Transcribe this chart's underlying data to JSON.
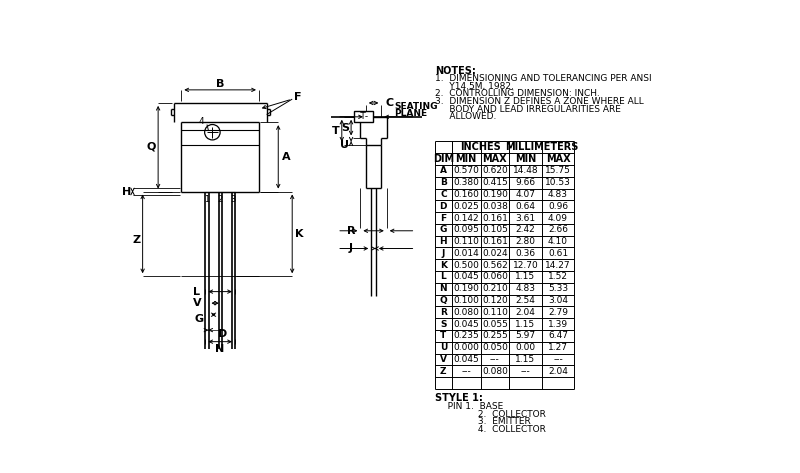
{
  "bg_color": "#ffffff",
  "line_color": "#000000",
  "notes": [
    "NOTES:",
    "1.  DIMENSIONING AND TOLERANCING PER ANSI",
    "     Y14.5M, 1982.",
    "2.  CONTROLLING DIMENSION: INCH.",
    "3.  DIMENSION Z DEFINES A ZONE WHERE ALL",
    "     BODY AND LEAD IRREGULARITIES ARE",
    "     ALLOWED."
  ],
  "table_group1": "INCHES",
  "table_group2": "MILLIMETERS",
  "table_headers": [
    "DIM",
    "MIN",
    "MAX",
    "MIN",
    "MAX"
  ],
  "table_data": [
    [
      "A",
      "0.570",
      "0.620",
      "14.48",
      "15.75"
    ],
    [
      "B",
      "0.380",
      "0.415",
      "9.66",
      "10.53"
    ],
    [
      "C",
      "0.160",
      "0.190",
      "4.07",
      "4.83"
    ],
    [
      "D",
      "0.025",
      "0.038",
      "0.64",
      "0.96"
    ],
    [
      "F",
      "0.142",
      "0.161",
      "3.61",
      "4.09"
    ],
    [
      "G",
      "0.095",
      "0.105",
      "2.42",
      "2.66"
    ],
    [
      "H",
      "0.110",
      "0.161",
      "2.80",
      "4.10"
    ],
    [
      "J",
      "0.014",
      "0.024",
      "0.36",
      "0.61"
    ],
    [
      "K",
      "0.500",
      "0.562",
      "12.70",
      "14.27"
    ],
    [
      "L",
      "0.045",
      "0.060",
      "1.15",
      "1.52"
    ],
    [
      "N",
      "0.190",
      "0.210",
      "4.83",
      "5.33"
    ],
    [
      "Q",
      "0.100",
      "0.120",
      "2.54",
      "3.04"
    ],
    [
      "R",
      "0.080",
      "0.110",
      "2.04",
      "2.79"
    ],
    [
      "S",
      "0.045",
      "0.055",
      "1.15",
      "1.39"
    ],
    [
      "T",
      "0.235",
      "0.255",
      "5.97",
      "6.47"
    ],
    [
      "U",
      "0.000",
      "0.050",
      "0.00",
      "1.27"
    ],
    [
      "V",
      "0.045",
      "---",
      "1.15",
      "---"
    ],
    [
      "Z",
      "---",
      "0.080",
      "---",
      "2.04"
    ]
  ],
  "style_lines": [
    "STYLE 1:",
    "   PIN 1.  BASE",
    "         2.  COLLECTOR",
    "         3.  EMITTER",
    "         4.  COLLECTOR"
  ],
  "seating_plane": "SEATING\nPLANE"
}
